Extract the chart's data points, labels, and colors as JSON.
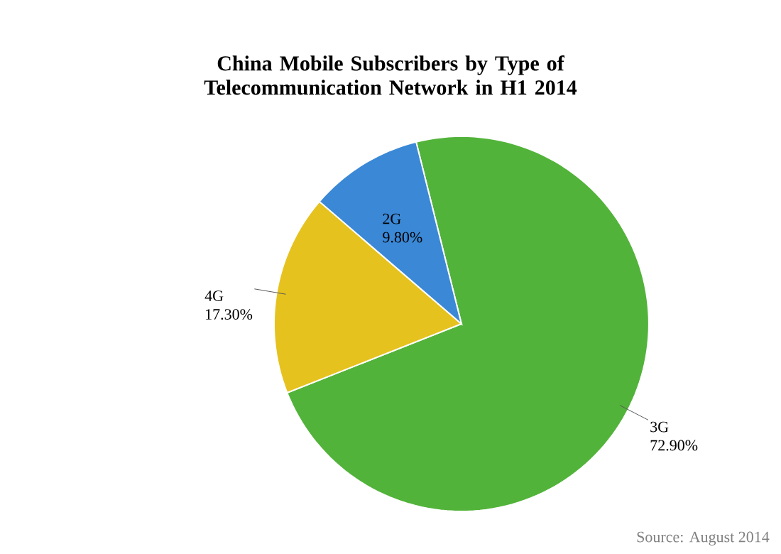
{
  "chart_data": {
    "type": "pie",
    "title": "China Mobile Subscribers by Type of Telecommunication Network in H1 2014",
    "categories": [
      "3G",
      "4G",
      "2G"
    ],
    "values": [
      72.9,
      17.3,
      9.8
    ],
    "colors": [
      "#52b33a",
      "#e6c21e",
      "#3a88d6"
    ],
    "value_labels": [
      "72.90%",
      "17.30%",
      "9.80%"
    ],
    "annotations": [
      "Source: August 2014"
    ]
  }
}
